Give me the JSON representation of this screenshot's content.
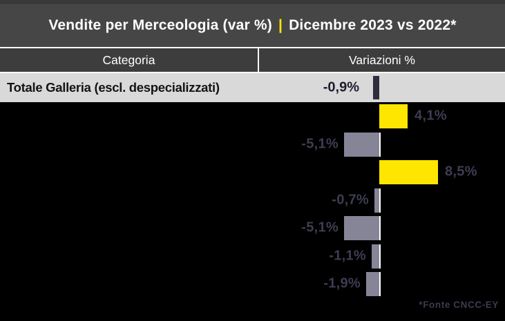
{
  "title": {
    "left": "Vendite per Merceologia (var %)",
    "separator": "|",
    "right": "Dicembre 2023 vs 2022*"
  },
  "table_header": {
    "category": "Categoria",
    "variations": "Variazioni %"
  },
  "source_note": "*Fonte CNCC-EY",
  "colors": {
    "accent_yellow": "#ffe600",
    "positive_bar": "#ffe600",
    "negative_bar": "#858597",
    "total_bar": "#2e2e3c",
    "title_bg": "#464646",
    "header_bg": "#3d3d3d",
    "total_row_bg": "#d9d9d9",
    "chart_bg": "#000000",
    "value_label": "#3d3d52"
  },
  "chart_data": {
    "type": "bar",
    "orientation": "horizontal",
    "title": "Vendite per Merceologia (var %) | Dicembre 2023 vs 2022*",
    "value_unit": "%",
    "xlim": [
      -6,
      9
    ],
    "grid": false,
    "legend": false,
    "categories": [
      "Totale Galleria (escl. despecializzati)",
      "",
      "",
      "",
      "",
      "",
      "",
      ""
    ],
    "values": [
      -0.9,
      4.1,
      -5.1,
      8.5,
      -0.7,
      -5.1,
      -1.1,
      -1.9
    ],
    "rows": [
      {
        "category": "Totale Galleria (escl. despecializzati)",
        "value": -0.9,
        "label": "-0,9%"
      },
      {
        "category": "",
        "value": 4.1,
        "label": "4,1%"
      },
      {
        "category": "",
        "value": -5.1,
        "label": "-5,1%"
      },
      {
        "category": "",
        "value": 8.5,
        "label": "8,5%"
      },
      {
        "category": "",
        "value": -0.7,
        "label": "-0,7%"
      },
      {
        "category": "",
        "value": -5.1,
        "label": "-5,1%"
      },
      {
        "category": "",
        "value": -1.1,
        "label": "-1,1%"
      },
      {
        "category": "",
        "value": -1.9,
        "label": "-1,9%"
      }
    ]
  }
}
